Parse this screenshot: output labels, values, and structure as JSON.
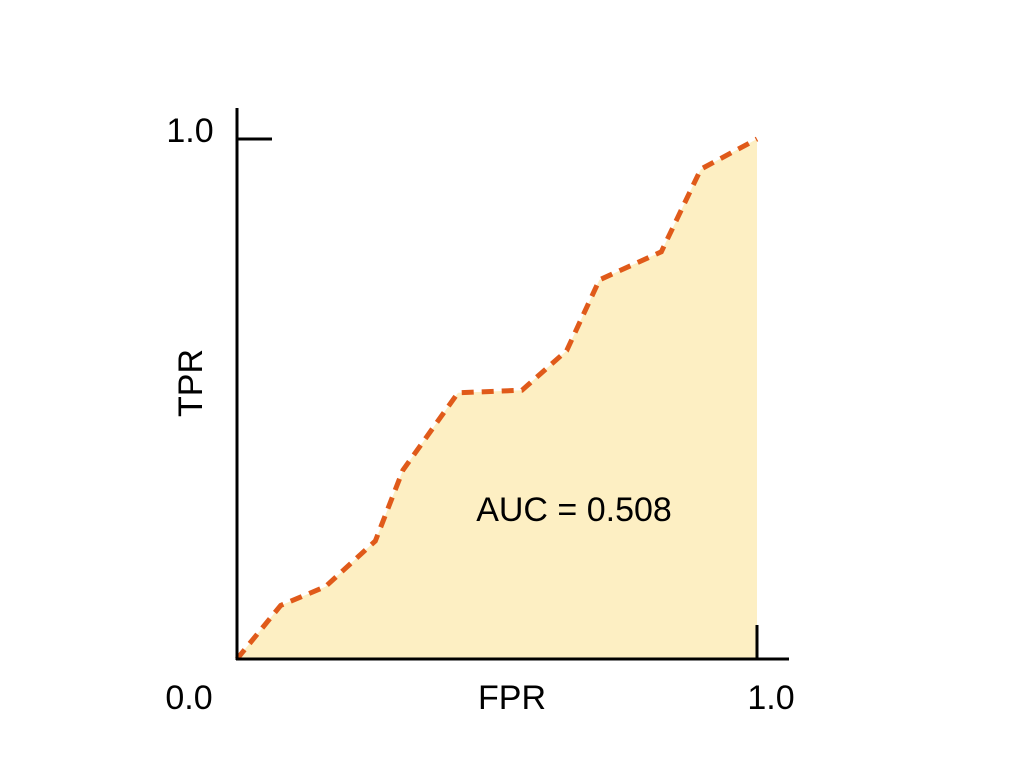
{
  "chart_data": {
    "type": "area",
    "title": "",
    "xlabel": "FPR",
    "ylabel": "TPR",
    "xlim": [
      0,
      1
    ],
    "ylim": [
      0,
      1
    ],
    "x_tick_labels": [
      "0.0",
      "1.0"
    ],
    "y_tick_labels": [
      "1.0"
    ],
    "grid": false,
    "annotation": "AUC = 0.508",
    "colors": {
      "line": "#e05a1a",
      "fill": "#fdefc3",
      "axis": "#000000"
    },
    "line_style": "dashed",
    "series": [
      {
        "x": [
          0,
          0.084,
          0.17,
          0.266,
          0.319,
          0.425,
          0.548,
          0.634,
          0.697,
          0.816,
          0.892,
          1.0
        ],
        "y": [
          0,
          0.103,
          0.139,
          0.227,
          0.363,
          0.512,
          0.517,
          0.593,
          0.729,
          0.783,
          0.942,
          1.0
        ]
      }
    ]
  }
}
